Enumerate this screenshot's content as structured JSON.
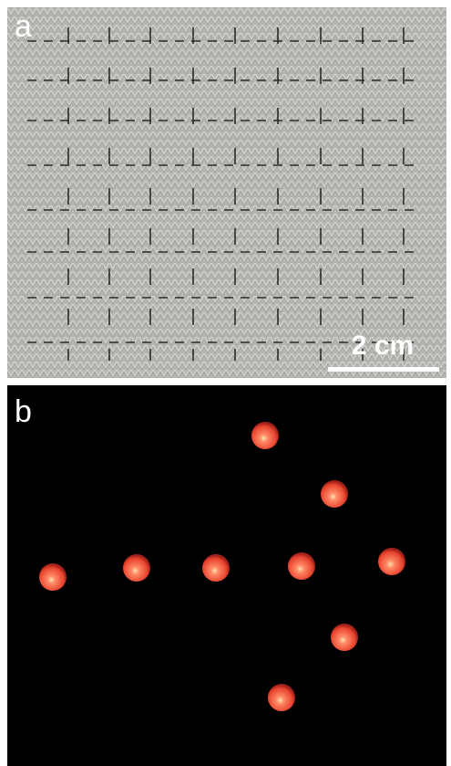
{
  "panels": [
    {
      "label": "a",
      "scale_bar": "2 cm"
    },
    {
      "label": "b"
    }
  ]
}
